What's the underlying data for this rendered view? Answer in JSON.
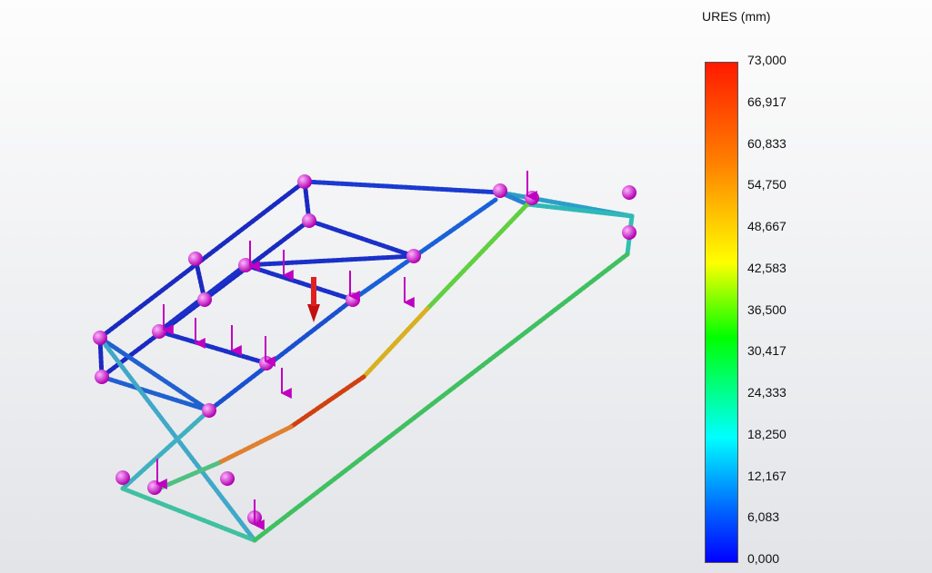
{
  "legend": {
    "title": "URES (mm)",
    "labels": [
      "73,000",
      "66,917",
      "60,833",
      "54,750",
      "48,667",
      "42,583",
      "36,500",
      "30,417",
      "24,333",
      "18,250",
      "12,167",
      "6,083",
      "0,000"
    ]
  }
}
